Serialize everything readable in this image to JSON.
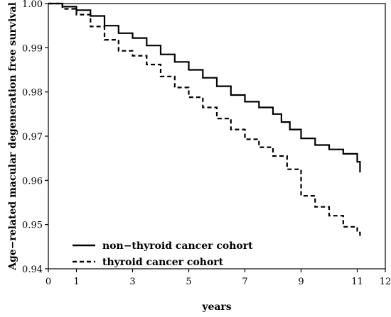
{
  "chart_data": {
    "type": "line",
    "title": "",
    "xlabel": "years",
    "ylabel": "Age−related macular degeneration free survival",
    "xlim": [
      0,
      12
    ],
    "ylim": [
      0.94,
      1.0
    ],
    "xticks": [
      0,
      1,
      3,
      5,
      7,
      9,
      11,
      12
    ],
    "xtick_labels": [
      "0",
      "1",
      "3",
      "5",
      "7",
      "9",
      "11",
      "12"
    ],
    "yticks": [
      0.94,
      0.95,
      0.96,
      0.97,
      0.98,
      0.99,
      1.0
    ],
    "ytick_labels": [
      "0.94",
      "0.95",
      "0.96",
      "0.97",
      "0.98",
      "0.99",
      "1.00"
    ],
    "grid": false,
    "legend_position": "bottom-left",
    "series": [
      {
        "name": "non−thyroid cancer cohort",
        "style": "solid",
        "color": "#000000",
        "x": [
          0,
          0.5,
          1,
          1.5,
          2,
          2.5,
          3,
          3.5,
          4,
          4.5,
          5,
          5.5,
          6,
          6.5,
          7,
          7.5,
          8,
          8.3,
          8.6,
          9,
          9.5,
          10,
          10.5,
          11,
          11.1
        ],
        "y": [
          1.0,
          0.9993,
          0.9985,
          0.9972,
          0.995,
          0.9933,
          0.9922,
          0.9905,
          0.9885,
          0.9868,
          0.985,
          0.9832,
          0.9813,
          0.9793,
          0.9778,
          0.9765,
          0.975,
          0.9732,
          0.9715,
          0.9695,
          0.968,
          0.967,
          0.966,
          0.9642,
          0.9618
        ]
      },
      {
        "name": "thyroid cancer cohort",
        "style": "dashed",
        "color": "#000000",
        "x": [
          0,
          0.5,
          1,
          1.5,
          2,
          2.5,
          3,
          3.5,
          4,
          4.5,
          5,
          5.5,
          6,
          6.5,
          7,
          7.5,
          8,
          8.5,
          9,
          9.5,
          10,
          10.5,
          11,
          11.1
        ],
        "y": [
          1.0,
          0.9988,
          0.9975,
          0.9948,
          0.9918,
          0.9893,
          0.9882,
          0.9862,
          0.9835,
          0.981,
          0.9788,
          0.9765,
          0.974,
          0.9715,
          0.9693,
          0.9675,
          0.9655,
          0.9625,
          0.9565,
          0.954,
          0.952,
          0.9495,
          0.9482,
          0.9468
        ]
      }
    ]
  }
}
